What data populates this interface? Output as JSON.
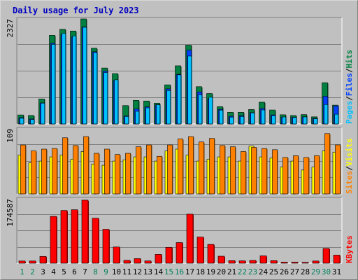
{
  "title": "Daily usage for July 2023",
  "chart_data": [
    {
      "type": "bar",
      "panel": "hits",
      "categories": [
        "1",
        "2",
        "3",
        "4",
        "5",
        "6",
        "7",
        "8",
        "9",
        "10",
        "11",
        "12",
        "13",
        "14",
        "15",
        "16",
        "17",
        "18",
        "19",
        "20",
        "21",
        "22",
        "23",
        "24",
        "25",
        "26",
        "27",
        "28",
        "29",
        "30",
        "31"
      ],
      "ymax_label": "2327",
      "ymax": 2327,
      "series": [
        {
          "name": "Hits",
          "color": "#008040",
          "values": [
            199,
            187,
            552,
            1965,
            2095,
            2059,
            2327,
            1677,
            1239,
            1114,
            407,
            522,
            508,
            460,
            866,
            1288,
            1745,
            825,
            674,
            381,
            259,
            259,
            319,
            481,
            309,
            203,
            186,
            207,
            157,
            913,
            417
          ]
        },
        {
          "name": "Files",
          "color": "#0040ff",
          "values": [
            140,
            110,
            466,
            1787,
            1983,
            1926,
            2149,
            1600,
            1170,
            960,
            177,
            330,
            377,
            423,
            777,
            1100,
            1635,
            709,
            557,
            322,
            170,
            183,
            250,
            342,
            199,
            151,
            152,
            158,
            123,
            613,
            399
          ]
        },
        {
          "name": "Pages",
          "color": "#00c0ff",
          "values": [
            125,
            98,
            460,
            1764,
            2007,
            1951,
            2141,
            1578,
            1140,
            979,
            165,
            280,
            356,
            423,
            740,
            1088,
            1505,
            642,
            591,
            305,
            150,
            166,
            244,
            310,
            178,
            155,
            144,
            155,
            115,
            431,
            215
          ]
        }
      ],
      "axis_label_parts": [
        "Pages",
        "Files",
        "Hits"
      ]
    },
    {
      "type": "bar",
      "panel": "visits",
      "categories": [
        "1",
        "2",
        "3",
        "4",
        "5",
        "6",
        "7",
        "8",
        "9",
        "10",
        "11",
        "12",
        "13",
        "14",
        "15",
        "16",
        "17",
        "18",
        "19",
        "20",
        "21",
        "22",
        "23",
        "24",
        "25",
        "26",
        "27",
        "28",
        "29",
        "30",
        "31"
      ],
      "ymax_label": "109",
      "ymax": 109,
      "series": [
        {
          "name": "Visits",
          "color": "#ffff00",
          "values": [
            65,
            52,
            55,
            62,
            65,
            58,
            71,
            50,
            48,
            55,
            57,
            62,
            62,
            55,
            72,
            75,
            65,
            55,
            58,
            62,
            62,
            55,
            80,
            62,
            60,
            45,
            55,
            40,
            45,
            72,
            70
          ]
        },
        {
          "name": "Sites",
          "color": "#ff8000",
          "values": [
            82,
            72,
            75,
            76,
            94,
            81,
            96,
            68,
            75,
            66,
            68,
            79,
            82,
            63,
            82,
            92,
            96,
            87,
            93,
            81,
            79,
            71,
            78,
            76,
            74,
            61,
            64,
            61,
            64,
            101,
            82
          ]
        }
      ],
      "axis_label_parts": [
        "Sites",
        "Visits"
      ]
    },
    {
      "type": "bar",
      "panel": "kbytes",
      "categories": [
        "1",
        "2",
        "3",
        "4",
        "5",
        "6",
        "7",
        "8",
        "9",
        "10",
        "11",
        "12",
        "13",
        "14",
        "15",
        "16",
        "17",
        "18",
        "19",
        "20",
        "21",
        "22",
        "23",
        "24",
        "25",
        "26",
        "27",
        "28",
        "29",
        "30",
        "31"
      ],
      "ymax_label": "174587",
      "ymax": 174587,
      "series": [
        {
          "name": "KBytes",
          "color": "#ff0000",
          "values": [
            6000,
            6000,
            18500,
            127000,
            143000,
            145000,
            171000,
            122000,
            92000,
            44000,
            7800,
            12500,
            6200,
            24000,
            43000,
            56000,
            133000,
            71000,
            51000,
            19000,
            7000,
            6500,
            7500,
            20000,
            7000,
            3000,
            3000,
            2500,
            6000,
            40000,
            22000
          ]
        }
      ],
      "axis_label_parts": [
        "KBytes"
      ]
    }
  ],
  "day_label_colors": {
    "weekday": "#000000",
    "weekend": "#00805c"
  },
  "weekend_days": [
    1,
    2,
    8,
    9,
    15,
    16,
    22,
    23,
    29,
    30
  ]
}
